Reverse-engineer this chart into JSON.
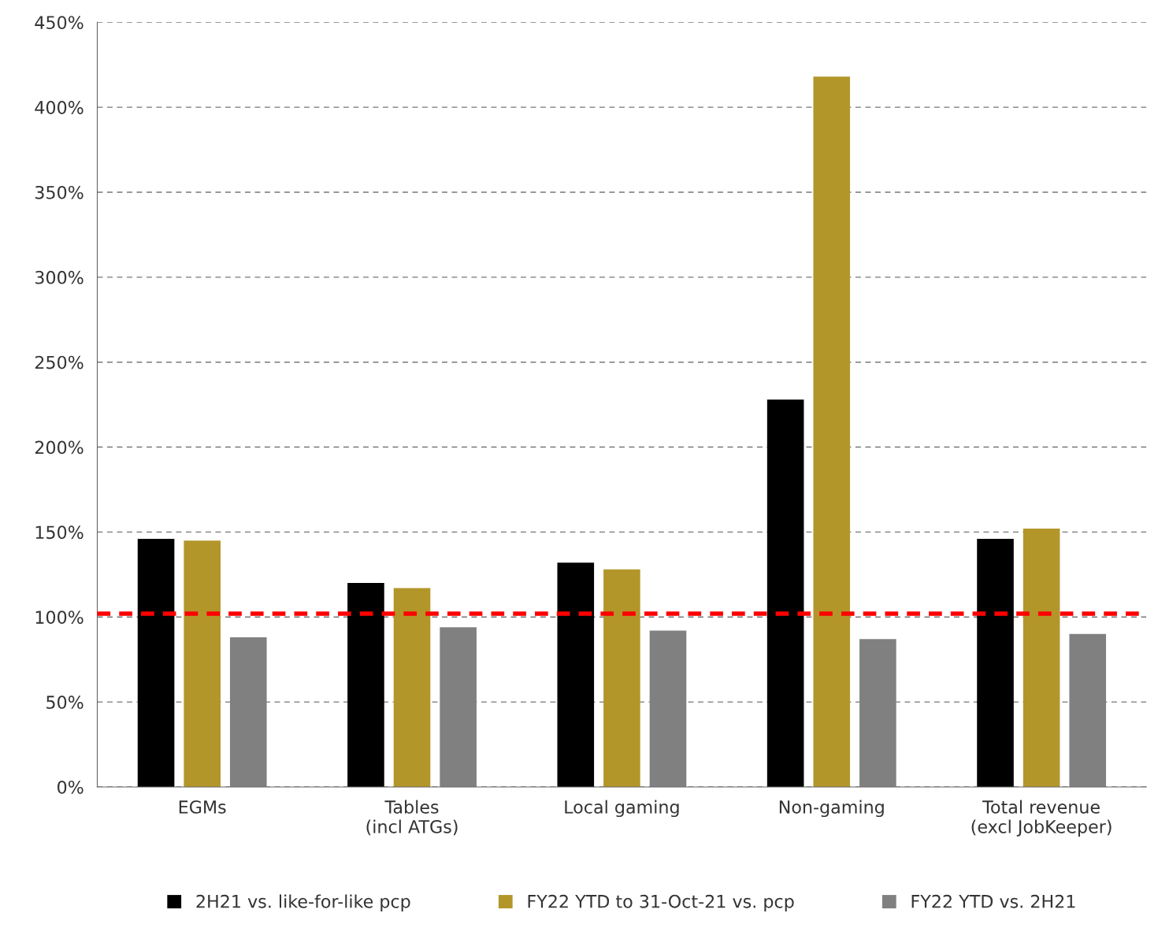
{
  "chart_data": {
    "type": "bar",
    "categories": [
      "EGMs",
      "Tables\n(incl ATGs)",
      "Local gaming",
      "Non-gaming",
      "Total revenue\n(excl JobKeeper)"
    ],
    "series": [
      {
        "name": "2H21 vs. like-for-like pcp",
        "color": "#000000",
        "values": [
          146,
          120,
          132,
          228,
          146
        ]
      },
      {
        "name": "FY22 YTD to 31-Oct-21 vs. pcp",
        "color": "#b3962a",
        "values": [
          145,
          117,
          128,
          418,
          152
        ]
      },
      {
        "name": "FY22 YTD vs. 2H21",
        "color": "#808080",
        "values": [
          88,
          94,
          92,
          87,
          90
        ]
      }
    ],
    "ylim": [
      0,
      450
    ],
    "yticks": [
      {
        "value": 0,
        "label": "0%"
      },
      {
        "value": 50,
        "label": "50%"
      },
      {
        "value": 100,
        "label": "100%"
      },
      {
        "value": 150,
        "label": "150%"
      },
      {
        "value": 200,
        "label": "200%"
      },
      {
        "value": 250,
        "label": "250%"
      },
      {
        "value": 300,
        "label": "300%"
      },
      {
        "value": 350,
        "label": "350%"
      },
      {
        "value": 400,
        "label": "400%"
      },
      {
        "value": 450,
        "label": "450%"
      }
    ],
    "grid": "y",
    "legend": "bottom",
    "ref_lines": [
      {
        "axis": "y",
        "value": 102,
        "color": "#ff0000",
        "line_style": "dashed"
      }
    ]
  }
}
